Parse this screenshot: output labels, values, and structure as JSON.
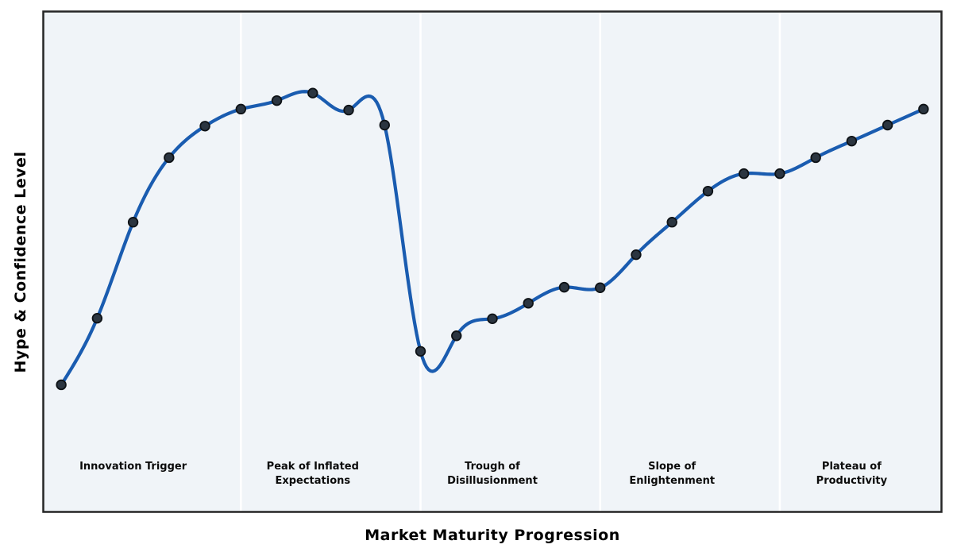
{
  "chart_data": {
    "type": "line",
    "title": "",
    "xlabel": "Market Maturity Progression",
    "ylabel": "Hype & Confidence Level",
    "x": [
      0,
      1,
      2,
      3,
      4,
      5,
      6,
      7,
      8,
      9,
      10,
      11,
      12,
      13,
      14,
      15,
      16,
      17,
      18,
      19,
      20,
      21,
      22,
      23,
      24
    ],
    "y": [
      25.4,
      38.7,
      57.9,
      70.8,
      77.1,
      80.5,
      82.2,
      83.7,
      80.3,
      77.3,
      32.1,
      35.2,
      38.6,
      41.7,
      44.9,
      44.8,
      51.4,
      57.9,
      64.1,
      67.6,
      67.6,
      70.8,
      74.1,
      77.3,
      80.5
    ],
    "xlim": [
      -0.5,
      24.5
    ],
    "ylim": [
      0,
      100
    ],
    "grid": false,
    "legend": null,
    "ticks_visible": false,
    "smooth_interpolation": "cubic-spline",
    "phase_dividers_x": [
      5,
      10,
      15,
      20
    ],
    "phases": [
      {
        "label": "Innovation Trigger",
        "center_x": 2
      },
      {
        "label": "Peak of Inflated\nExpectations",
        "center_x": 7
      },
      {
        "label": "Trough of\nDisillusionment",
        "center_x": 12
      },
      {
        "label": "Slope of\nEnlightenment",
        "center_x": 17
      },
      {
        "label": "Plateau of\nProductivity",
        "center_x": 22
      }
    ],
    "colors": {
      "line": "#1a5cb0",
      "marker_fill": "#2b3540",
      "marker_edge": "#0e1216",
      "plot_bg": "#f0f4f8",
      "divider": "#ffffff",
      "border": "#262626",
      "label_text": "#0b0b0b",
      "fig_bg": "#ffffff"
    }
  }
}
